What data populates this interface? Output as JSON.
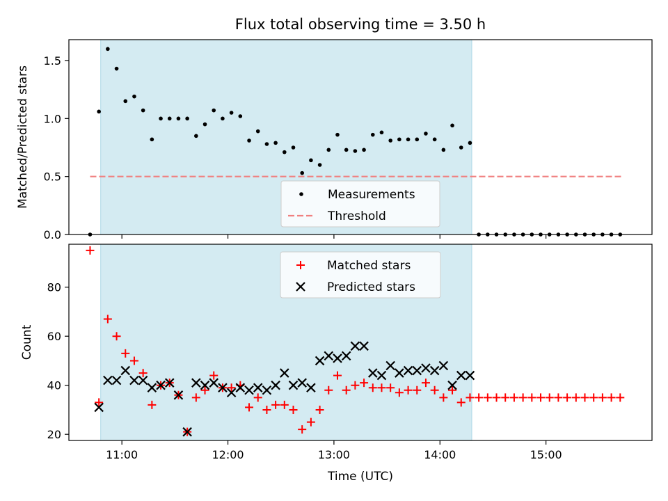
{
  "title": "Flux total observing time = 3.50 h",
  "colors": {
    "measurement": "#000000",
    "threshold": "#f08080",
    "matched": "#ff0000",
    "predicted": "#000000",
    "span": "#add8e6"
  },
  "chart_data": [
    {
      "type": "scatter",
      "name": "ratio-panel",
      "ylabel": "Matched/Predicted stars",
      "ylim": [
        0,
        1.68
      ],
      "yticks": [
        "0.0",
        "0.5",
        "1.0",
        "1.5"
      ],
      "ytick_values": [
        0,
        0.5,
        1.0,
        1.5
      ],
      "xlim": [
        "10:30",
        "16:00"
      ],
      "shaded_span": [
        "10:48",
        "14:18"
      ],
      "threshold": {
        "y": 0.5,
        "x_range": [
          "10:42",
          "15:43"
        ]
      },
      "legend": {
        "placement": "lower-center",
        "entries": [
          "Measurements",
          "Threshold"
        ]
      },
      "series": [
        {
          "name": "Measurements",
          "x": [
            "10:42",
            "10:47",
            "10:52",
            "10:57",
            "11:02",
            "11:07",
            "11:12",
            "11:17",
            "11:22",
            "11:27",
            "11:32",
            "11:37",
            "11:42",
            "11:47",
            "11:52",
            "11:57",
            "12:02",
            "12:07",
            "12:12",
            "12:17",
            "12:22",
            "12:27",
            "12:32",
            "12:37",
            "12:42",
            "12:47",
            "12:52",
            "12:57",
            "13:02",
            "13:07",
            "13:12",
            "13:17",
            "13:22",
            "13:27",
            "13:32",
            "13:37",
            "13:42",
            "13:47",
            "13:52",
            "13:57",
            "14:02",
            "14:07",
            "14:12",
            "14:17",
            "14:22",
            "14:27",
            "14:32",
            "14:37",
            "14:42",
            "14:47",
            "14:52",
            "14:57",
            "15:02",
            "15:07",
            "15:12",
            "15:17",
            "15:22",
            "15:27",
            "15:32",
            "15:37",
            "15:42"
          ],
          "y": [
            0.0,
            1.06,
            1.6,
            1.43,
            1.15,
            1.19,
            1.07,
            0.82,
            1.0,
            1.0,
            1.0,
            1.0,
            0.85,
            0.95,
            1.07,
            1.0,
            1.05,
            1.02,
            0.81,
            0.89,
            0.78,
            0.79,
            0.71,
            0.75,
            0.53,
            0.64,
            0.6,
            0.73,
            0.86,
            0.73,
            0.72,
            0.73,
            0.86,
            0.88,
            0.81,
            0.82,
            0.82,
            0.82,
            0.87,
            0.82,
            0.73,
            0.94,
            0.75,
            0.79,
            0.0,
            0.0,
            0.0,
            0.0,
            0.0,
            0.0,
            0.0,
            0.0,
            0.0,
            0.0,
            0.0,
            0.0,
            0.0,
            0.0,
            0.0,
            0.0,
            0.0
          ]
        }
      ]
    },
    {
      "type": "scatter",
      "name": "count-panel",
      "ylabel": "Count",
      "xlabel": "Time (UTC)",
      "ylim": [
        17.5,
        97.5
      ],
      "yticks": [
        "20",
        "40",
        "60",
        "80"
      ],
      "ytick_values": [
        20,
        40,
        60,
        80
      ],
      "xlim": [
        "10:30",
        "16:00"
      ],
      "xticks": [
        "11:00",
        "12:00",
        "13:00",
        "14:00",
        "15:00"
      ],
      "shaded_span": [
        "10:48",
        "14:18"
      ],
      "legend": {
        "placement": "upper-center",
        "entries": [
          "Matched stars",
          "Predicted stars"
        ]
      },
      "series": [
        {
          "name": "Matched stars",
          "x": [
            "10:42",
            "10:47",
            "10:52",
            "10:57",
            "11:02",
            "11:07",
            "11:12",
            "11:17",
            "11:22",
            "11:27",
            "11:32",
            "11:37",
            "11:42",
            "11:47",
            "11:52",
            "11:57",
            "12:02",
            "12:07",
            "12:12",
            "12:17",
            "12:22",
            "12:27",
            "12:32",
            "12:37",
            "12:42",
            "12:47",
            "12:52",
            "12:57",
            "13:02",
            "13:07",
            "13:12",
            "13:17",
            "13:22",
            "13:27",
            "13:32",
            "13:37",
            "13:42",
            "13:47",
            "13:52",
            "13:57",
            "14:02",
            "14:07",
            "14:12",
            "14:17",
            "14:22",
            "14:27",
            "14:32",
            "14:37",
            "14:42",
            "14:47",
            "14:52",
            "14:57",
            "15:02",
            "15:07",
            "15:12",
            "15:17",
            "15:22",
            "15:27",
            "15:32",
            "15:37",
            "15:42"
          ],
          "y": [
            95,
            33,
            67,
            60,
            53,
            50,
            45,
            32,
            40,
            41,
            36,
            21,
            35,
            38,
            44,
            39,
            39,
            40,
            31,
            35,
            30,
            32,
            32,
            30,
            22,
            25,
            30,
            38,
            44,
            38,
            40,
            41,
            39,
            39,
            39,
            37,
            38,
            38,
            41,
            38,
            35,
            38,
            33,
            35,
            35,
            35,
            35,
            35,
            35,
            35,
            35,
            35,
            35,
            35,
            35,
            35,
            35,
            35,
            35,
            35,
            35
          ]
        },
        {
          "name": "Predicted stars",
          "x": [
            "10:47",
            "10:52",
            "10:57",
            "11:02",
            "11:07",
            "11:12",
            "11:17",
            "11:22",
            "11:27",
            "11:32",
            "11:37",
            "11:42",
            "11:47",
            "11:52",
            "11:57",
            "12:02",
            "12:07",
            "12:12",
            "12:17",
            "12:22",
            "12:27",
            "12:32",
            "12:37",
            "12:42",
            "12:47",
            "12:52",
            "12:57",
            "13:02",
            "13:07",
            "13:12",
            "13:17",
            "13:22",
            "13:27",
            "13:32",
            "13:37",
            "13:42",
            "13:47",
            "13:52",
            "13:57",
            "14:02",
            "14:07",
            "14:12",
            "14:17"
          ],
          "y": [
            31,
            42,
            42,
            46,
            42,
            42,
            39,
            40,
            41,
            36,
            21,
            41,
            40,
            41,
            39,
            37,
            39,
            38,
            39,
            38,
            40,
            45,
            40,
            41,
            39,
            50,
            52,
            51,
            52,
            56,
            56,
            45,
            44,
            48,
            45,
            46,
            46,
            47,
            46,
            48,
            40,
            44,
            44
          ]
        }
      ]
    }
  ]
}
